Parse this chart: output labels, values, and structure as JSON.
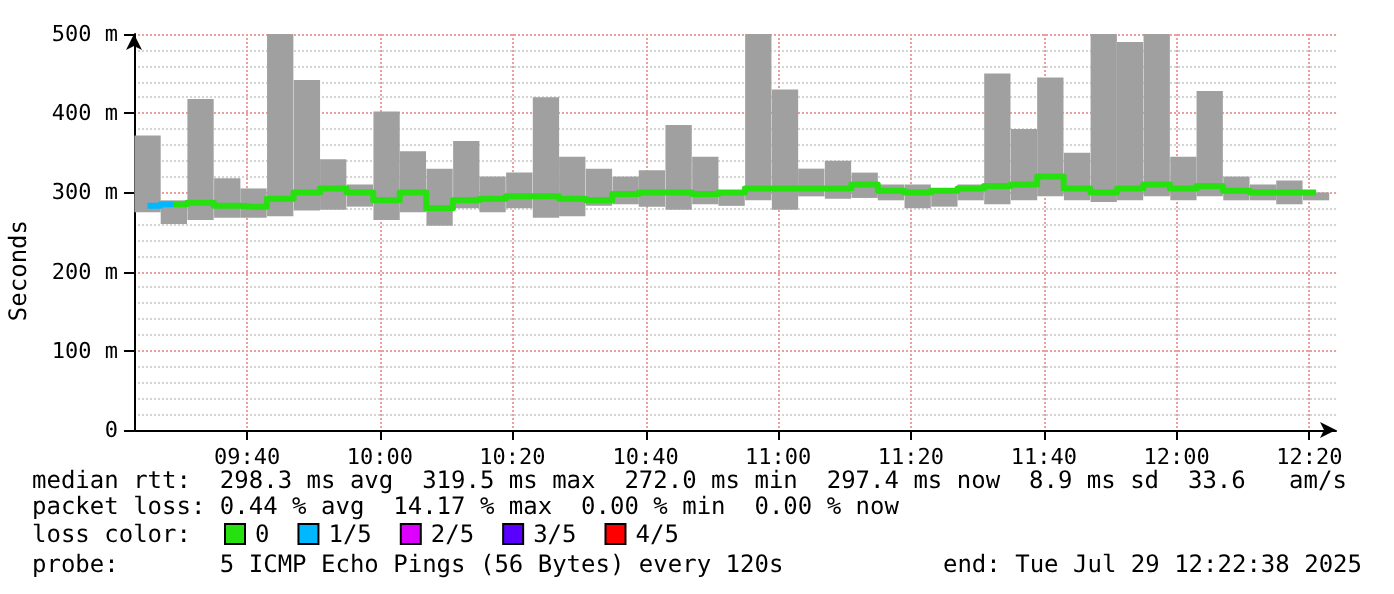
{
  "chart_data": {
    "type": "step",
    "ylabel": "Seconds",
    "x": [
      9.417,
      9.483,
      9.55,
      9.617,
      9.683,
      9.75,
      9.817,
      9.883,
      9.95,
      10.017,
      10.083,
      10.15,
      10.217,
      10.283,
      10.35,
      10.417,
      10.483,
      10.55,
      10.617,
      10.683,
      10.75,
      10.817,
      10.883,
      10.95,
      11.017,
      11.083,
      11.15,
      11.217,
      11.283,
      11.35,
      11.417,
      11.483,
      11.55,
      11.617,
      11.683,
      11.75,
      11.817,
      11.883,
      11.95,
      12.017,
      12.083,
      12.15,
      12.217,
      12.283,
      12.35
    ],
    "series": [
      {
        "type": "bar",
        "color": "#a0a0a0",
        "base": [
          275,
          260,
          265,
          268,
          268,
          270,
          277,
          278,
          282,
          265,
          275,
          258,
          280,
          275,
          280,
          268,
          270,
          283,
          285,
          282,
          278,
          285,
          283,
          290,
          278,
          295,
          292,
          293,
          290,
          280,
          282,
          290,
          285,
          290,
          295,
          290,
          288,
          290,
          295,
          290,
          295,
          290,
          290,
          285,
          290
        ],
        "values": [
          97,
          30,
          153,
          50,
          37,
          230,
          165,
          64,
          28,
          137,
          77,
          72,
          85,
          45,
          45,
          152,
          75,
          47,
          35,
          46,
          107,
          60,
          17,
          210,
          152,
          35,
          48,
          32,
          20,
          30,
          23,
          20,
          165,
          90,
          150,
          60,
          212,
          200,
          205,
          55,
          133,
          30,
          20,
          30,
          10
        ]
      },
      {
        "name": "0",
        "color": "#26e010",
        "x": [
          9.483,
          9.55,
          9.617,
          9.683,
          9.75,
          9.817,
          9.883,
          9.95,
          10.017,
          10.083,
          10.15,
          10.217,
          10.283,
          10.35,
          10.417,
          10.483,
          10.55,
          10.617,
          10.683,
          10.75,
          10.817,
          10.883,
          10.95,
          11.017,
          11.083,
          11.15,
          11.217,
          11.283,
          11.35,
          11.417,
          11.483,
          11.55,
          11.617,
          11.683,
          11.75,
          11.817,
          11.883,
          11.95,
          12.017,
          12.083,
          12.15,
          12.217,
          12.283,
          12.35
        ],
        "values": [
          285,
          287,
          283,
          282,
          292,
          300,
          305,
          300,
          290,
          300,
          280,
          290,
          292,
          295,
          295,
          292,
          290,
          298,
          300,
          300,
          298,
          300,
          305,
          305,
          305,
          305,
          310,
          302,
          300,
          302,
          305,
          308,
          310,
          320,
          305,
          300,
          305,
          310,
          305,
          308,
          302,
          300,
          300,
          300
        ]
      },
      {
        "name": "1/5",
        "color": "#00b8ff",
        "x": [
          9.417,
          9.483
        ],
        "values": [
          283,
          285
        ]
      },
      {
        "name": "2/5",
        "color": "#dd00ff",
        "values": [
          null,
          null,
          null,
          null,
          null,
          null,
          null,
          null,
          null,
          null,
          null,
          null,
          null,
          null,
          null,
          null,
          null,
          null,
          null,
          null,
          null,
          null,
          null,
          null,
          null,
          null,
          null,
          null,
          null,
          null,
          null,
          null,
          null,
          null,
          null,
          null,
          null,
          null,
          null,
          null,
          null,
          null,
          null,
          null,
          null
        ]
      },
      {
        "name": "3/5",
        "color": "#5a00ff",
        "values": [
          null,
          null,
          null,
          null,
          null,
          null,
          null,
          null,
          null,
          null,
          null,
          null,
          null,
          null,
          null,
          null,
          null,
          null,
          null,
          null,
          null,
          null,
          null,
          null,
          null,
          null,
          null,
          null,
          null,
          null,
          null,
          null,
          null,
          null,
          null,
          null,
          null,
          null,
          null,
          null,
          null,
          null,
          null,
          null,
          null
        ]
      },
      {
        "name": "4/5",
        "color": "#ff0000",
        "values": [
          null,
          null,
          null,
          null,
          null,
          null,
          null,
          null,
          null,
          null,
          null,
          null,
          null,
          null,
          null,
          null,
          null,
          null,
          null,
          null,
          null,
          null,
          null,
          null,
          null,
          null,
          null,
          null,
          null,
          null,
          null,
          null,
          null,
          null,
          null,
          null,
          null,
          null,
          null,
          null,
          null,
          null,
          null,
          null,
          null
        ]
      }
    ],
    "xlim": [
      9.383,
      12.4
    ],
    "xticks": [
      {
        "value": 9.667,
        "label": "09:40"
      },
      {
        "value": 10,
        "label": "10:00"
      },
      {
        "value": 10.333,
        "label": "10:20"
      },
      {
        "value": 10.667,
        "label": "10:40"
      },
      {
        "value": 11,
        "label": "11:00"
      },
      {
        "value": 11.333,
        "label": "11:20"
      },
      {
        "value": 11.667,
        "label": "11:40"
      },
      {
        "value": 12,
        "label": "12:00"
      },
      {
        "value": 12.333,
        "label": "12:20"
      }
    ],
    "ylim": [
      0,
      500
    ],
    "yticks": [
      0,
      {
        "value": 100,
        "label": "100 m"
      },
      {
        "value": 200,
        "label": "200 m"
      },
      {
        "value": 300,
        "label": "300 m"
      },
      {
        "value": 400,
        "label": "400 m"
      },
      {
        "value": 500,
        "label": "500 m"
      }
    ],
    "grid": true,
    "legend": "bottom",
    "legend_title": "loss color:",
    "annotations": [
      "median rtt:  298.3 ms avg  319.5 ms max  272.0 ms min  297.4 ms now  8.9 ms sd  33.6   am/s",
      "packet loss: 0.44 % avg  14.17 % max  0.00 % min  0.00 % now",
      "probe:       5 ICMP Echo Pings (56 Bytes) every 120s",
      "end: Tue Jul 29 12:22:38 2025"
    ]
  }
}
